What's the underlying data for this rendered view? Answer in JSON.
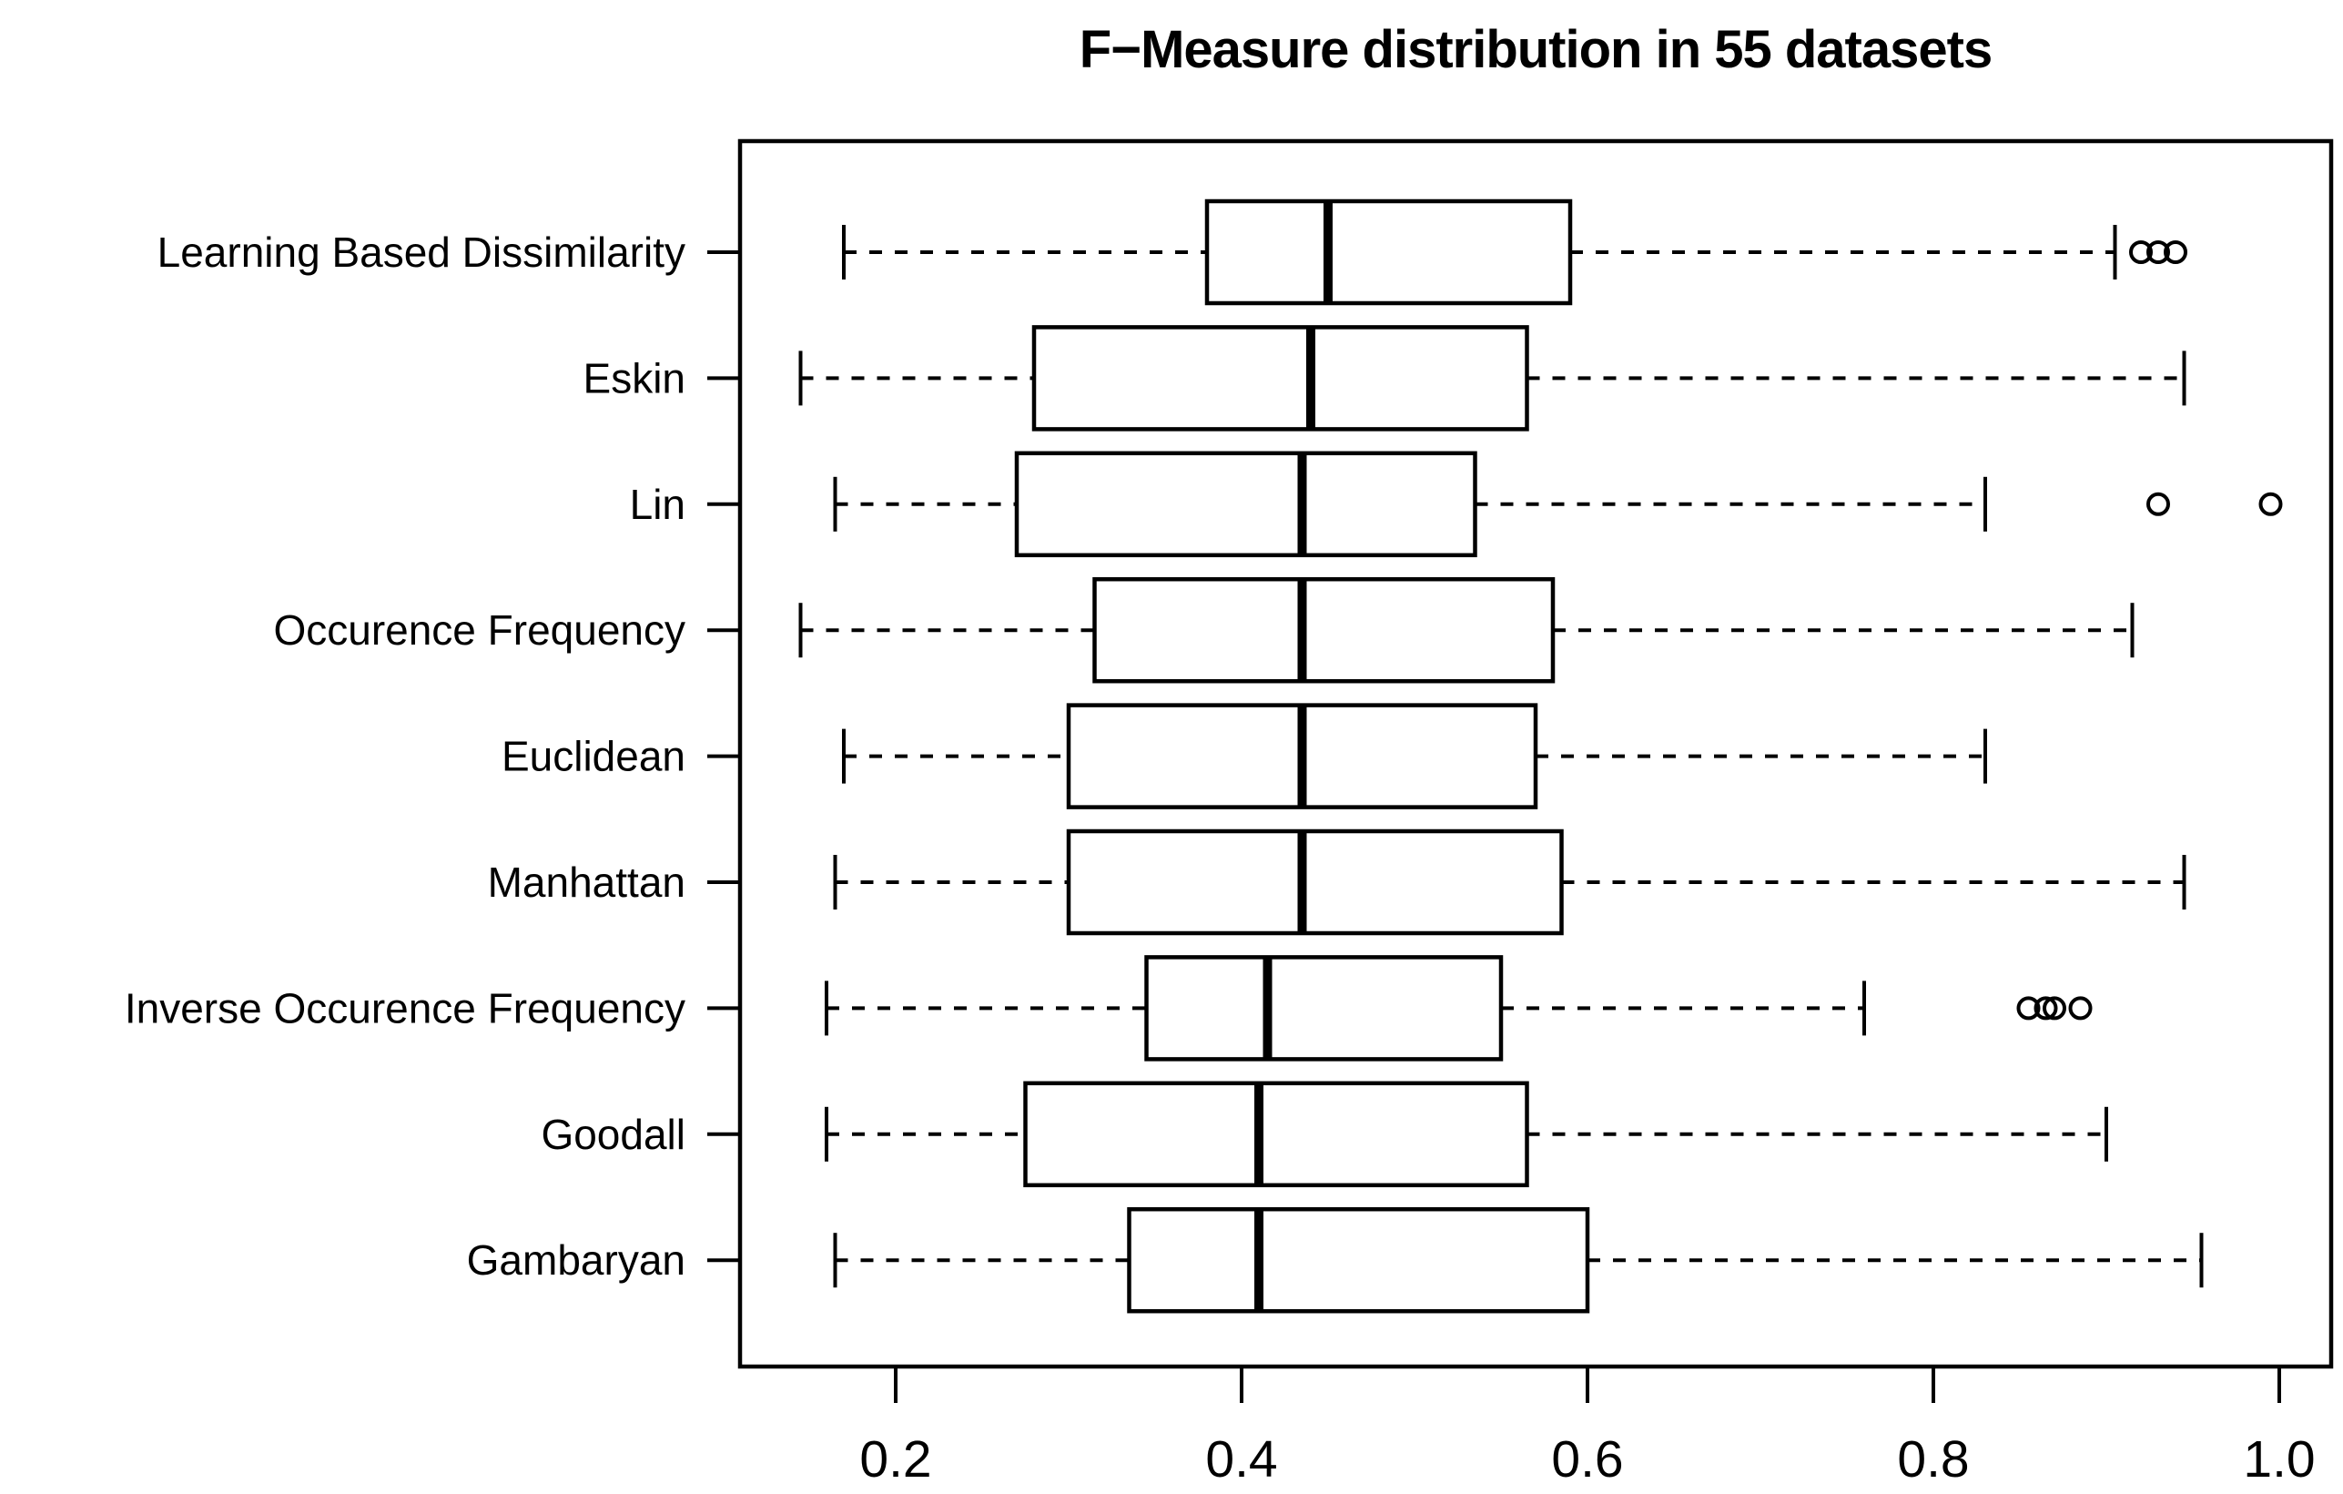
{
  "figure": {
    "title": "F−Measure distribution in 55 datasets"
  },
  "chart_data": {
    "type": "boxplot",
    "orientation": "horizontal",
    "title": "F−Measure distribution in 55 datasets",
    "xlabel": "",
    "ylabel": "",
    "grid": false,
    "legend": null,
    "x_axis": {
      "range": [
        0.11,
        1.03
      ],
      "ticks": [
        0.2,
        0.4,
        0.6,
        0.8,
        1.0
      ],
      "tick_labels": [
        "0.2",
        "0.4",
        "0.6",
        "0.8",
        "1.0"
      ]
    },
    "categories": [
      "Learning Based Dissimilarity",
      "Eskin",
      "Lin",
      "Occurence Frequency",
      "Euclidean",
      "Manhattan",
      "Inverse Occurence Frequency",
      "Goodall",
      "Gambaryan"
    ],
    "series": [
      {
        "name": "Learning Based Dissimilarity",
        "whisker_low": 0.17,
        "q1": 0.38,
        "median": 0.45,
        "q3": 0.59,
        "whisker_high": 0.905,
        "outliers": [
          0.92,
          0.93,
          0.94
        ]
      },
      {
        "name": "Eskin",
        "whisker_low": 0.145,
        "q1": 0.28,
        "median": 0.44,
        "q3": 0.565,
        "whisker_high": 0.945,
        "outliers": []
      },
      {
        "name": "Lin",
        "whisker_low": 0.165,
        "q1": 0.27,
        "median": 0.435,
        "q3": 0.535,
        "whisker_high": 0.83,
        "outliers": [
          0.93,
          0.995
        ]
      },
      {
        "name": "Occurence Frequency",
        "whisker_low": 0.145,
        "q1": 0.315,
        "median": 0.435,
        "q3": 0.58,
        "whisker_high": 0.915,
        "outliers": []
      },
      {
        "name": "Euclidean",
        "whisker_low": 0.17,
        "q1": 0.3,
        "median": 0.435,
        "q3": 0.57,
        "whisker_high": 0.83,
        "outliers": []
      },
      {
        "name": "Manhattan",
        "whisker_low": 0.165,
        "q1": 0.3,
        "median": 0.435,
        "q3": 0.585,
        "whisker_high": 0.945,
        "outliers": []
      },
      {
        "name": "Inverse Occurence Frequency",
        "whisker_low": 0.16,
        "q1": 0.345,
        "median": 0.415,
        "q3": 0.55,
        "whisker_high": 0.76,
        "outliers": [
          0.855,
          0.865,
          0.87,
          0.885
        ]
      },
      {
        "name": "Goodall",
        "whisker_low": 0.16,
        "q1": 0.275,
        "median": 0.41,
        "q3": 0.565,
        "whisker_high": 0.9,
        "outliers": []
      },
      {
        "name": "Gambaryan",
        "whisker_low": 0.165,
        "q1": 0.335,
        "median": 0.41,
        "q3": 0.6,
        "whisker_high": 0.955,
        "outliers": []
      }
    ],
    "colors": {
      "stroke": "#000000",
      "box_fill": "#ffffff",
      "background": "#ffffff"
    }
  }
}
